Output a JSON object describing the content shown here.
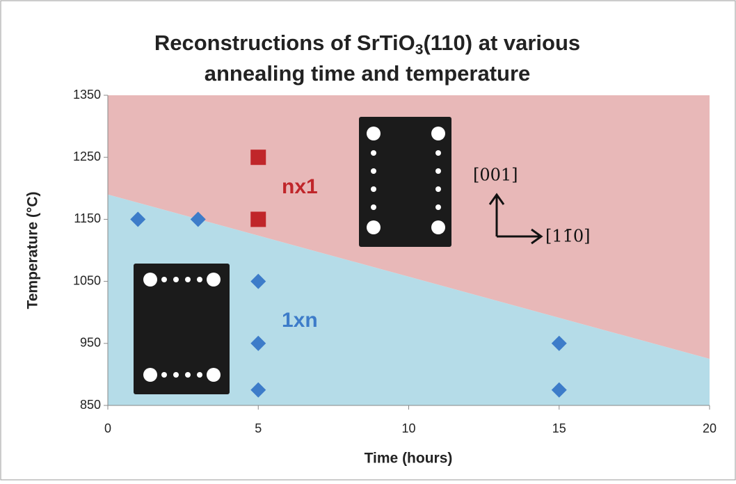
{
  "chart_data": {
    "type": "scatter",
    "title_main": "Reconstructions of SrTiO",
    "title_subscript": "3",
    "title_rest": "(110) at various",
    "title_line2": "annealing time and temperature",
    "x_label": "Time (hours)",
    "y_label": "Temperature (°C)",
    "xlim": [
      0,
      20
    ],
    "xticks": [
      0,
      5,
      10,
      15,
      20
    ],
    "ylim": [
      850,
      1350
    ],
    "yticks": [
      850,
      950,
      1050,
      1150,
      1250,
      1350
    ],
    "series": [
      {
        "name": "1xn",
        "color": "#3d7cc9",
        "marker": "diamond",
        "x": [
          1,
          3,
          5,
          5,
          5,
          15,
          15
        ],
        "values": [
          1150,
          1150,
          1050,
          950,
          875,
          950,
          875
        ]
      },
      {
        "name": "nx1",
        "color": "#c0262a",
        "marker": "square",
        "x": [
          5,
          5
        ],
        "values": [
          1250,
          1150
        ]
      }
    ],
    "boundary": {
      "x": [
        0,
        20
      ],
      "y": [
        1190,
        925
      ],
      "above_color": "#e8b8b8",
      "below_color": "#b5dce8"
    },
    "direction_labels": [
      "[001]",
      "[11̄0]"
    ]
  }
}
